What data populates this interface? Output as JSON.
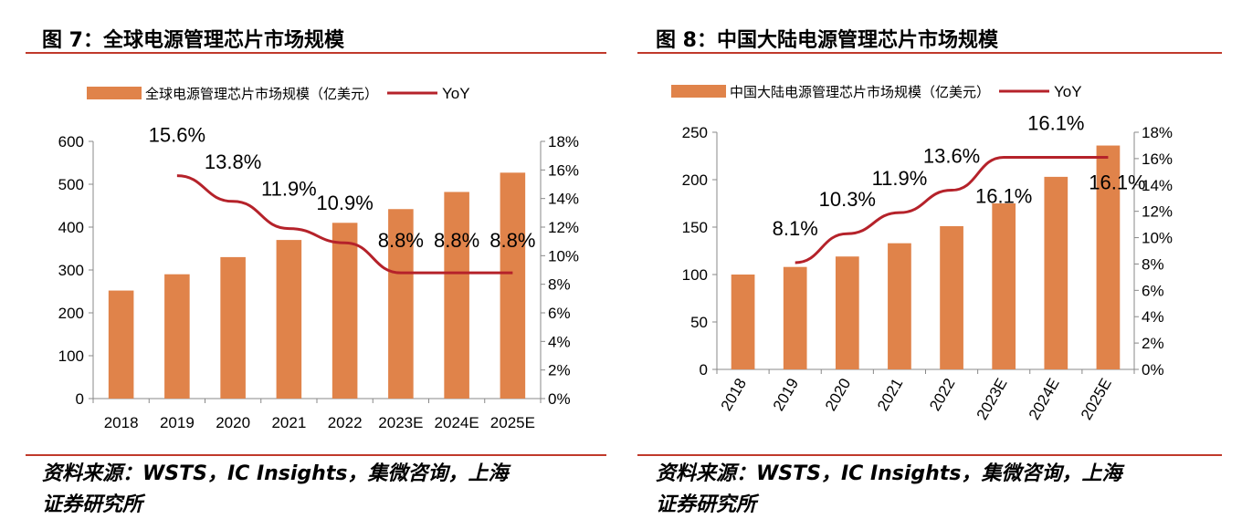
{
  "colors": {
    "bar": "#E0834A",
    "line": "#B5222A",
    "rule": "#C0392B"
  },
  "chart_data": [
    {
      "type": "bar+line",
      "title": "图 7：全球电源管理芯片市场规模",
      "legend": {
        "bar": "全球电源管理芯片市场规模（亿美元）",
        "line": "YoY",
        "placement": "top"
      },
      "categories": [
        "2018",
        "2019",
        "2020",
        "2021",
        "2022",
        "2023E",
        "2024E",
        "2025E"
      ],
      "bar_values": [
        252,
        290,
        330,
        370,
        410,
        442,
        482,
        527
      ],
      "yoy": [
        null,
        15.6,
        13.8,
        11.9,
        10.9,
        8.8,
        8.8,
        8.8
      ],
      "yoy_labels": [
        "",
        "15.6%",
        "13.8%",
        "11.9%",
        "10.9%",
        "8.8%",
        "8.8%",
        "8.8%"
      ],
      "ylim": [
        0,
        600
      ],
      "yticks": [
        "0",
        "100",
        "200",
        "300",
        "400",
        "500",
        "600"
      ],
      "y2lim": [
        0,
        18
      ],
      "y2ticks": [
        "0%",
        "2%",
        "4%",
        "6%",
        "8%",
        "10%",
        "12%",
        "14%",
        "16%",
        "18%"
      ],
      "source": [
        "资料来源：WSTS，IC Insights，集微咨询，上海",
        "证券研究所"
      ]
    },
    {
      "type": "bar+line",
      "title": "图 8：中国大陆电源管理芯片市场规模",
      "legend": {
        "bar": "中国大陆电源管理芯片市场规模（亿美元）",
        "line": "YoY",
        "placement": "top"
      },
      "categories": [
        "2018",
        "2019",
        "2020",
        "2021",
        "2022",
        "2023E",
        "2024E",
        "2025E"
      ],
      "bar_values": [
        100,
        108,
        119,
        133,
        151,
        175,
        203,
        236
      ],
      "yoy": [
        null,
        8.1,
        10.3,
        11.9,
        13.6,
        16.1,
        16.1,
        16.1
      ],
      "yoy_labels": [
        "",
        "8.1%",
        "10.3%",
        "11.9%",
        "13.6%",
        "16.1%",
        "16.1%",
        "16.1%"
      ],
      "ylim": [
        0,
        250
      ],
      "yticks": [
        "0",
        "50",
        "100",
        "150",
        "200",
        "250"
      ],
      "y2lim": [
        0,
        18
      ],
      "y2ticks": [
        "0%",
        "2%",
        "4%",
        "6%",
        "8%",
        "10%",
        "12%",
        "14%",
        "16%",
        "18%"
      ],
      "source": [
        "资料来源：WSTS，IC Insights，集微咨询，上海",
        "证券研究所"
      ]
    }
  ]
}
